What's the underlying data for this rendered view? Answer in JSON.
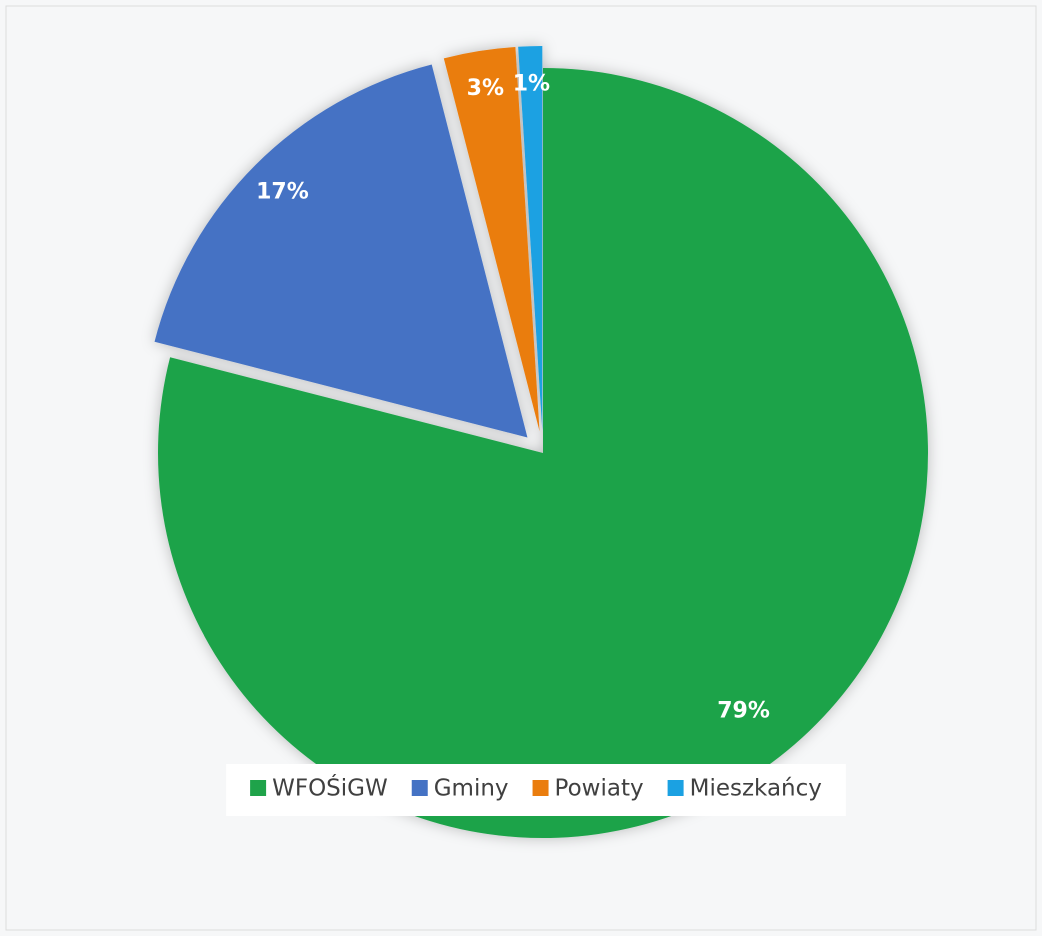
{
  "chart_data": {
    "type": "pie",
    "categories": [
      "WFOŚiGW",
      "Gminy",
      "Powiaty",
      "Mieszkańcy"
    ],
    "values": [
      79,
      17,
      3,
      1
    ],
    "value_labels": [
      "79%",
      "17%",
      "3%",
      "1%"
    ],
    "colors": [
      "#1fa34a",
      "#4472c4",
      "#ea7d0e",
      "#1ba1e2"
    ],
    "legend": "bottom"
  }
}
